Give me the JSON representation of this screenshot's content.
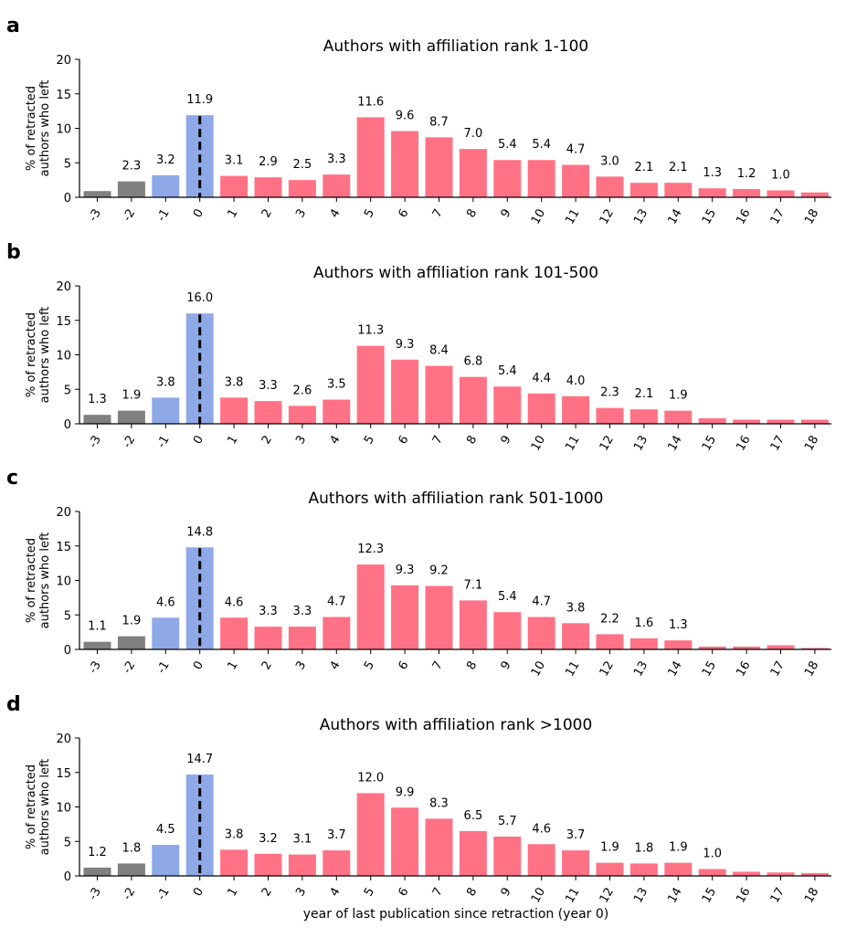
{
  "figure": {
    "xlabel": "year of last publication since retraction (year 0)"
  },
  "colors": {
    "before": "#808080",
    "year_minus1_and_0": "#8FA8E8",
    "after": "#FF7285",
    "reference_line": "#000000"
  },
  "chart_data": [
    {
      "panel": "a",
      "type": "bar",
      "title": "Authors with affiliation rank 1-100",
      "ylabel": [
        "% of retracted",
        "authors who left"
      ],
      "ylim": [
        0,
        20
      ],
      "yticks": [
        0,
        5,
        10,
        15,
        20
      ],
      "reference_line_x": "0",
      "categories": [
        "-3",
        "-2",
        "-1",
        "0",
        "1",
        "2",
        "3",
        "4",
        "5",
        "6",
        "7",
        "8",
        "9",
        "10",
        "11",
        "12",
        "13",
        "14",
        "15",
        "16",
        "17",
        "18"
      ],
      "values": [
        0.9,
        2.3,
        3.2,
        11.9,
        3.1,
        2.9,
        2.5,
        3.3,
        11.6,
        9.6,
        8.7,
        7.0,
        5.4,
        5.4,
        4.7,
        3.0,
        2.1,
        2.1,
        1.3,
        1.2,
        1.0,
        0.7
      ],
      "data_labels": [
        "",
        "2.3",
        "3.2",
        "11.9",
        "3.1",
        "2.9",
        "2.5",
        "3.3",
        "11.6",
        "9.6",
        "8.7",
        "7.0",
        "5.4",
        "5.4",
        "4.7",
        "3.0",
        "2.1",
        "2.1",
        "1.3",
        "1.2",
        "1.0",
        ""
      ]
    },
    {
      "panel": "b",
      "type": "bar",
      "title": "Authors with affiliation rank 101-500",
      "ylabel": [
        "% of retracted",
        "authors who left"
      ],
      "ylim": [
        0,
        20
      ],
      "yticks": [
        0,
        5,
        10,
        15,
        20
      ],
      "reference_line_x": "0",
      "categories": [
        "-3",
        "-2",
        "-1",
        "0",
        "1",
        "2",
        "3",
        "4",
        "5",
        "6",
        "7",
        "8",
        "9",
        "10",
        "11",
        "12",
        "13",
        "14",
        "15",
        "16",
        "17",
        "18"
      ],
      "values": [
        1.3,
        1.9,
        3.8,
        16.0,
        3.8,
        3.3,
        2.6,
        3.5,
        11.3,
        9.3,
        8.4,
        6.8,
        5.4,
        4.4,
        4.0,
        2.3,
        2.1,
        1.9,
        0.8,
        0.6,
        0.6,
        0.6
      ],
      "data_labels": [
        "1.3",
        "1.9",
        "3.8",
        "16.0",
        "3.8",
        "3.3",
        "2.6",
        "3.5",
        "11.3",
        "9.3",
        "8.4",
        "6.8",
        "5.4",
        "4.4",
        "4.0",
        "2.3",
        "2.1",
        "1.9",
        "",
        "",
        "",
        ""
      ]
    },
    {
      "panel": "c",
      "type": "bar",
      "title": "Authors with affiliation rank 501-1000",
      "ylabel": [
        "% of retracted",
        "authors who left"
      ],
      "ylim": [
        0,
        20
      ],
      "yticks": [
        0,
        5,
        10,
        15,
        20
      ],
      "reference_line_x": "0",
      "categories": [
        "-3",
        "-2",
        "-1",
        "0",
        "1",
        "2",
        "3",
        "4",
        "5",
        "6",
        "7",
        "8",
        "9",
        "10",
        "11",
        "12",
        "13",
        "14",
        "15",
        "16",
        "17",
        "18"
      ],
      "values": [
        1.1,
        1.9,
        4.6,
        14.8,
        4.6,
        3.3,
        3.3,
        4.7,
        12.3,
        9.3,
        9.2,
        7.1,
        5.4,
        4.7,
        3.8,
        2.2,
        1.6,
        1.3,
        0.4,
        0.4,
        0.6,
        0.2
      ],
      "data_labels": [
        "1.1",
        "1.9",
        "4.6",
        "14.8",
        "4.6",
        "3.3",
        "3.3",
        "4.7",
        "12.3",
        "9.3",
        "9.2",
        "7.1",
        "5.4",
        "4.7",
        "3.8",
        "2.2",
        "1.6",
        "1.3",
        "",
        "",
        "",
        ""
      ]
    },
    {
      "panel": "d",
      "type": "bar",
      "title": "Authors with affiliation rank >1000",
      "ylabel": [
        "% of retracted",
        "authors who left"
      ],
      "ylim": [
        0,
        20
      ],
      "yticks": [
        0,
        5,
        10,
        15,
        20
      ],
      "reference_line_x": "0",
      "categories": [
        "-3",
        "-2",
        "-1",
        "0",
        "1",
        "2",
        "3",
        "4",
        "5",
        "6",
        "7",
        "8",
        "9",
        "10",
        "11",
        "12",
        "13",
        "14",
        "15",
        "16",
        "17",
        "18"
      ],
      "values": [
        1.2,
        1.8,
        4.5,
        14.7,
        3.8,
        3.2,
        3.1,
        3.7,
        12.0,
        9.9,
        8.3,
        6.5,
        5.7,
        4.6,
        3.7,
        1.9,
        1.8,
        1.9,
        1.0,
        0.6,
        0.5,
        0.4
      ],
      "data_labels": [
        "1.2",
        "1.8",
        "4.5",
        "14.7",
        "3.8",
        "3.2",
        "3.1",
        "3.7",
        "12.0",
        "9.9",
        "8.3",
        "6.5",
        "5.7",
        "4.6",
        "3.7",
        "1.9",
        "1.8",
        "1.9",
        "1.0",
        "",
        "",
        ""
      ]
    }
  ]
}
